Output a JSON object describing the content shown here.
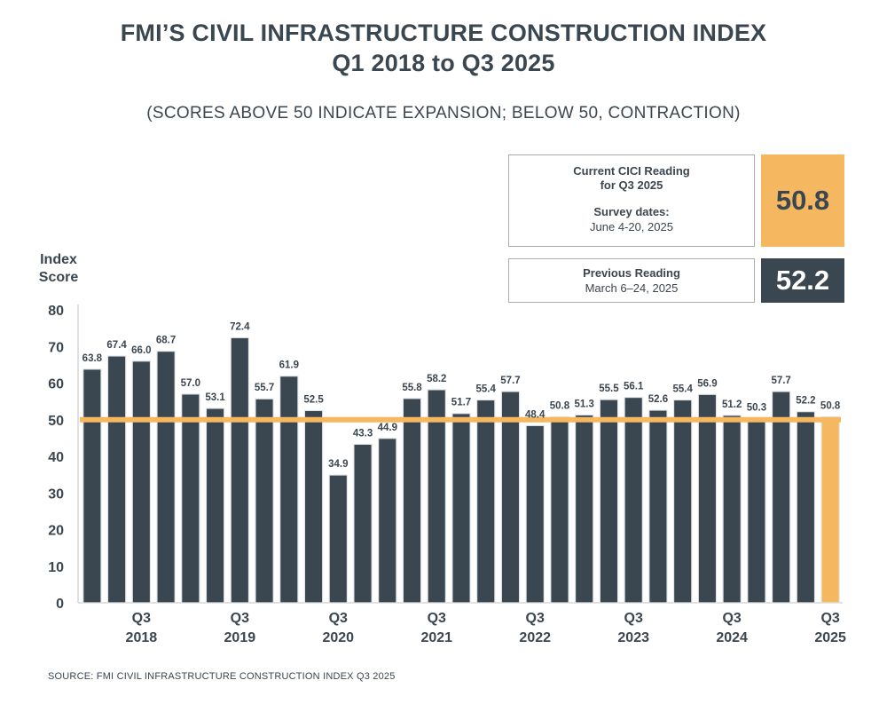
{
  "title_line1": "FMI’S CIVIL INFRASTRUCTURE CONSTRUCTION INDEX",
  "title_line2": "Q1 2018 to Q3 2025",
  "subtitle": "(SCORES ABOVE 50 INDICATE EXPANSION; BELOW 50, CONTRACTION)",
  "current_box": {
    "line1": "Current CICI Reading",
    "line2": "for Q3 2025",
    "line3": "Survey dates:",
    "line4": "June 4-20, 2025",
    "value": "50.8"
  },
  "previous_box": {
    "line1": "Previous Reading",
    "line2": "March 6–24, 2025",
    "value": "52.2"
  },
  "source": "SOURCE: FMI CIVIL INFRASTRUCTURE CONSTRUCTION INDEX Q3 2025",
  "colors": {
    "bar": "#3a4650",
    "highlight": "#f5b861",
    "reference_line": "#f5b861"
  },
  "chart_data": {
    "type": "bar",
    "title": "FMI’S CIVIL INFRASTRUCTURE CONSTRUCTION INDEX",
    "subtitle": "Q1 2018 to Q3 2025",
    "ylabel": "Index Score",
    "xlabel": "",
    "ylim": [
      0,
      80
    ],
    "yticks": [
      0,
      10,
      20,
      30,
      40,
      50,
      60,
      70,
      80
    ],
    "reference_line": 50,
    "categories": [
      "Q1 2018",
      "Q2 2018",
      "Q3 2018",
      "Q4 2018",
      "Q1 2019",
      "Q2 2019",
      "Q3 2019",
      "Q4 2019",
      "Q1 2020",
      "Q2 2020",
      "Q3 2020",
      "Q4 2020",
      "Q1 2021",
      "Q2 2021",
      "Q3 2021",
      "Q4 2021",
      "Q1 2022",
      "Q2 2022",
      "Q3 2022",
      "Q4 2022",
      "Q1 2023",
      "Q2 2023",
      "Q3 2023",
      "Q4 2023",
      "Q1 2024",
      "Q2 2024",
      "Q3 2024",
      "Q4 2024",
      "Q1 2025",
      "Q2 2025",
      "Q3 2025"
    ],
    "values": [
      63.8,
      67.4,
      66.0,
      68.7,
      57.0,
      53.1,
      72.4,
      55.7,
      61.9,
      52.5,
      34.9,
      43.3,
      44.9,
      55.8,
      58.2,
      51.7,
      55.4,
      57.7,
      48.4,
      50.8,
      51.3,
      55.5,
      56.1,
      52.6,
      55.4,
      56.9,
      51.2,
      50.3,
      57.7,
      52.2,
      50.8
    ],
    "value_labels": [
      "63.8",
      "67.4",
      "66.0",
      "68.7",
      "57.0",
      "53.1",
      "72.4",
      "55.7",
      "61.9",
      "52.5",
      "34.9",
      "43.3",
      "44.9",
      "55.8",
      "58.2",
      "51.7",
      "55.4",
      "57.7",
      "48.4",
      "50.8",
      "51.3",
      "55.5",
      "56.1",
      "52.6",
      "55.4",
      "56.9",
      "51.2",
      "50.3",
      "57.7",
      "52.2",
      "50.8"
    ],
    "x_tick_labels": [
      {
        "index": 2,
        "quarter": "Q3",
        "year": "2018"
      },
      {
        "index": 6,
        "quarter": "Q3",
        "year": "2019"
      },
      {
        "index": 10,
        "quarter": "Q3",
        "year": "2020"
      },
      {
        "index": 14,
        "quarter": "Q3",
        "year": "2021"
      },
      {
        "index": 18,
        "quarter": "Q3",
        "year": "2022"
      },
      {
        "index": 22,
        "quarter": "Q3",
        "year": "2023"
      },
      {
        "index": 26,
        "quarter": "Q3",
        "year": "2024"
      },
      {
        "index": 30,
        "quarter": "Q3",
        "year": "2025"
      }
    ],
    "highlight_index": 30,
    "grid": false
  }
}
